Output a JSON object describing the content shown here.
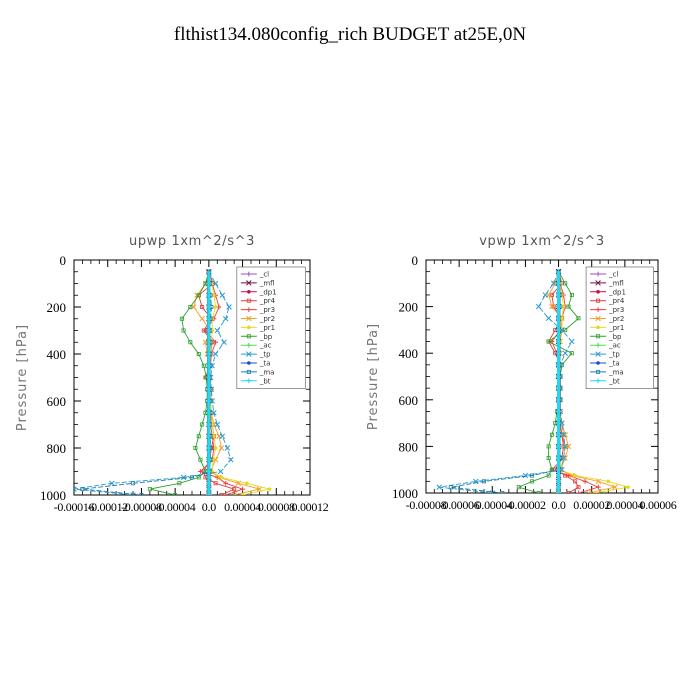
{
  "title": "flthist134.080config_rich  BUDGET at25E,0N",
  "chart_data": [
    {
      "type": "line",
      "title": "upwp   1xm^2/s^3",
      "ylabel": "Pressure [hPa]",
      "xlabel": "",
      "xlim": [
        -0.00016,
        0.00012
      ],
      "ylim": [
        1000,
        0
      ],
      "y_ticks": [
        0,
        200,
        400,
        600,
        800,
        1000
      ],
      "y_tick_labels": [
        "0",
        "200",
        "400",
        "600",
        "800",
        "1000"
      ],
      "x_ticks": [
        -0.00016,
        -0.00012,
        -8e-05,
        -4e-05,
        0.0,
        4e-05,
        8e-05,
        0.00012
      ],
      "x_tick_labels": [
        "-0.00016",
        "-0.00012",
        "-0.00008",
        "-0.00004",
        "0.0",
        "0.00004",
        "0.00008",
        "0.00012"
      ],
      "legend_position": "top-right",
      "pressure_levels": [
        50,
        100,
        150,
        200,
        250,
        300,
        350,
        400,
        450,
        500,
        550,
        600,
        650,
        700,
        750,
        800,
        850,
        900,
        925,
        950,
        975,
        1000
      ],
      "series": [
        {
          "name": "_cl",
          "color": "#a24cc2",
          "values": [
            0,
            0,
            0,
            0,
            0,
            0,
            0,
            0,
            0,
            0,
            0,
            0,
            0,
            0,
            0,
            0,
            0,
            0,
            0,
            0,
            0,
            0
          ]
        },
        {
          "name": "_mfl",
          "color": "#7a0f44",
          "values": [
            0,
            0,
            0,
            0,
            0,
            0,
            0,
            0,
            0,
            0,
            0,
            0,
            0,
            0,
            0,
            0,
            0,
            0,
            0,
            0,
            0,
            0
          ]
        },
        {
          "name": "_dp1",
          "color": "#c0104a",
          "values": [
            0,
            0,
            0,
            0,
            0,
            0,
            0,
            0,
            0,
            0,
            0,
            0,
            0,
            0,
            0,
            0,
            0,
            0,
            0,
            0,
            0,
            0
          ]
        },
        {
          "name": "_pr4",
          "color": "#e03a3a",
          "values": [
            0,
            5e-06,
            -1.2e-05,
            -8e-06,
            3e-06,
            -6e-06,
            4e-06,
            2e-06,
            1e-06,
            -4e-06,
            2e-06,
            1e-06,
            2e-06,
            4e-06,
            6e-06,
            3e-06,
            1e-06,
            -6e-06,
            -4e-06,
            8e-06,
            3e-05,
            1.5e-05
          ]
        },
        {
          "name": "_pr3",
          "color": "#f04040",
          "values": [
            0,
            4e-06,
            8e-06,
            1.2e-05,
            6e-06,
            -4e-06,
            8e-06,
            3e-06,
            2e-06,
            1e-06,
            3e-06,
            2e-06,
            2e-06,
            2e-06,
            4e-06,
            6e-06,
            4e-06,
            -1e-05,
            1e-05,
            2e-05,
            4e-05,
            2e-05
          ]
        },
        {
          "name": "_pr2",
          "color": "#f2a030",
          "values": [
            0,
            -4e-06,
            -1.4e-05,
            -1.8e-05,
            -8e-06,
            2e-06,
            -4e-06,
            -2e-06,
            1e-06,
            1e-06,
            2e-06,
            2e-06,
            3e-06,
            6e-06,
            1.2e-05,
            1.5e-05,
            8e-06,
            2e-06,
            1.2e-05,
            3.5e-05,
            6e-05,
            3e-05
          ]
        },
        {
          "name": "_pr1",
          "color": "#e8d820",
          "values": [
            0,
            3e-06,
            6e-06,
            8e-06,
            4e-06,
            4e-06,
            3e-06,
            2e-06,
            1e-06,
            1e-06,
            2e-06,
            2e-06,
            3e-06,
            4e-06,
            6e-06,
            8e-06,
            5e-06,
            4e-06,
            1.5e-05,
            4.5e-05,
            7.2e-05,
            4e-05
          ]
        },
        {
          "name": "_bp",
          "color": "#2ca02c",
          "values": [
            0,
            -4e-06,
            -1.2e-05,
            -2.2e-05,
            -3.2e-05,
            -3e-05,
            -2.2e-05,
            -1.2e-05,
            -6e-06,
            -3e-06,
            -2e-06,
            -2e-06,
            -4e-06,
            -8e-06,
            -1.2e-05,
            -1.6e-05,
            -1e-05,
            -4e-06,
            -1.2e-05,
            -3.5e-05,
            -7e-05,
            -4e-05
          ]
        },
        {
          "name": "_ac",
          "color": "#50e050",
          "values": [
            0,
            0,
            0,
            0,
            0,
            0,
            0,
            0,
            0,
            0,
            0,
            0,
            0,
            0,
            0,
            0,
            0,
            0,
            0,
            0,
            0,
            0
          ]
        },
        {
          "name": "_tp",
          "color": "#2a9ad0",
          "values": [
            0,
            8e-06,
            1.6e-05,
            2.4e-05,
            2e-05,
            1e-05,
            1.8e-05,
            8e-06,
            4e-06,
            2e-06,
            3e-06,
            4e-06,
            6e-06,
            1e-05,
            1.6e-05,
            2.2e-05,
            2.6e-05,
            1.4e-05,
            -3e-05,
            -0.000115,
            -0.00016,
            -9e-05
          ]
        },
        {
          "name": "_ta",
          "color": "#1e4cc0",
          "values": [
            0,
            0,
            0,
            0,
            0,
            0,
            0,
            0,
            0,
            0,
            0,
            0,
            0,
            0,
            0,
            0,
            0,
            0,
            0,
            0,
            0,
            0
          ]
        },
        {
          "name": "_ma",
          "color": "#1a7fa8",
          "values": [
            0,
            1e-06,
            2e-06,
            3e-06,
            2e-06,
            1e-06,
            2e-06,
            1e-06,
            0,
            0,
            0,
            0,
            1e-06,
            1e-06,
            2e-06,
            2e-06,
            2e-06,
            1e-06,
            -2e-05,
            -9e-05,
            -0.00015,
            -8e-05
          ]
        },
        {
          "name": "_bt",
          "color": "#20d8f0",
          "values": [
            0,
            0,
            0,
            0,
            0,
            0,
            0,
            0,
            0,
            0,
            0,
            0,
            0,
            0,
            0,
            0,
            0,
            0,
            0,
            0,
            0,
            0
          ]
        }
      ]
    },
    {
      "type": "line",
      "title": "vpwp   1xm^2/s^3",
      "ylabel": "Pressure [hPa]",
      "xlabel": "",
      "xlim": [
        -8e-05,
        6e-05
      ],
      "ylim": [
        1000,
        0
      ],
      "y_ticks": [
        0,
        200,
        400,
        600,
        800,
        1000
      ],
      "y_tick_labels": [
        "0",
        "200",
        "400",
        "600",
        "800",
        "1000"
      ],
      "x_ticks": [
        -8e-05,
        -6e-05,
        -4e-05,
        -2e-05,
        0.0,
        2e-05,
        4e-05,
        6e-05
      ],
      "x_tick_labels": [
        "-0.00008",
        "-0.00006",
        "-0.00004",
        "-0.00002",
        "0.0",
        "0.00002",
        "0.00004",
        "0.00006"
      ],
      "legend_position": "top-right",
      "pressure_levels": [
        50,
        100,
        150,
        200,
        250,
        300,
        350,
        400,
        450,
        500,
        550,
        600,
        650,
        700,
        750,
        800,
        850,
        900,
        925,
        950,
        975,
        1000
      ],
      "series": [
        {
          "name": "_cl",
          "color": "#a24cc2",
          "values": [
            0,
            0,
            0,
            0,
            0,
            0,
            0,
            0,
            0,
            0,
            0,
            0,
            0,
            0,
            0,
            0,
            0,
            0,
            0,
            0,
            0,
            0
          ]
        },
        {
          "name": "_mfl",
          "color": "#7a0f44",
          "values": [
            0,
            0,
            0,
            0,
            0,
            0,
            0,
            0,
            0,
            0,
            0,
            0,
            0,
            0,
            0,
            0,
            0,
            0,
            0,
            0,
            0,
            0
          ]
        },
        {
          "name": "_dp1",
          "color": "#c0104a",
          "values": [
            0,
            0,
            0,
            0,
            0,
            0,
            0,
            0,
            0,
            0,
            0,
            0,
            0,
            0,
            0,
            0,
            0,
            0,
            0,
            0,
            0,
            0
          ]
        },
        {
          "name": "_pr4",
          "color": "#e03a3a",
          "values": [
            0,
            2e-06,
            -4e-06,
            -3e-06,
            2e-06,
            -2e-06,
            -6e-06,
            -2e-06,
            1e-06,
            1e-06,
            1e-06,
            1e-06,
            1e-06,
            1e-06,
            2e-06,
            3e-06,
            2e-06,
            -2e-06,
            4e-06,
            1e-05,
            1.2e-05,
            6e-06
          ]
        },
        {
          "name": "_pr3",
          "color": "#f04040",
          "values": [
            0,
            1e-06,
            3e-06,
            4e-06,
            2e-06,
            1e-06,
            -4e-06,
            -1e-06,
            0,
            1e-06,
            1e-06,
            1e-06,
            1e-06,
            1e-06,
            2e-06,
            4e-06,
            3e-06,
            -4e-06,
            6e-06,
            1.6e-05,
            2.4e-05,
            1.2e-05
          ]
        },
        {
          "name": "_pr2",
          "color": "#f2a030",
          "values": [
            0,
            -2e-06,
            -6e-06,
            -4e-06,
            2e-06,
            2e-06,
            1e-06,
            1e-06,
            0,
            0,
            0,
            0,
            1e-06,
            2e-06,
            4e-06,
            6e-06,
            4e-06,
            1e-06,
            8e-06,
            2.4e-05,
            3.4e-05,
            1.8e-05
          ]
        },
        {
          "name": "_pr1",
          "color": "#e8d820",
          "values": [
            0,
            1e-06,
            2e-06,
            3e-06,
            2e-06,
            1e-06,
            1e-06,
            0,
            0,
            0,
            0,
            0,
            1e-06,
            2e-06,
            3e-06,
            4e-06,
            3e-06,
            1e-06,
            1e-05,
            3e-05,
            4.2e-05,
            2.2e-05
          ]
        },
        {
          "name": "_bp",
          "color": "#2ca02c",
          "values": [
            0,
            4e-06,
            8e-06,
            6e-06,
            1.2e-05,
            4e-06,
            -6e-06,
            8e-06,
            2e-06,
            1e-06,
            1e-06,
            1e-06,
            -1e-06,
            -2e-06,
            -4e-06,
            -6e-06,
            -6e-06,
            -4e-06,
            -6e-06,
            -1.6e-05,
            -2.4e-05,
            -1.2e-05
          ]
        },
        {
          "name": "_ac",
          "color": "#50e050",
          "values": [
            0,
            0,
            0,
            0,
            0,
            0,
            0,
            0,
            0,
            0,
            0,
            0,
            0,
            0,
            0,
            0,
            0,
            0,
            0,
            0,
            0,
            0
          ]
        },
        {
          "name": "_tp",
          "color": "#2a9ad0",
          "values": [
            0,
            -3e-06,
            -8e-06,
            -1.2e-05,
            -6e-06,
            2e-06,
            8e-06,
            4e-06,
            1e-06,
            1e-06,
            1e-06,
            1e-06,
            1e-06,
            2e-06,
            3e-06,
            4e-06,
            3e-06,
            2e-06,
            -2e-05,
            -5e-05,
            -7.2e-05,
            -4e-05
          ]
        },
        {
          "name": "_ta",
          "color": "#1e4cc0",
          "values": [
            0,
            0,
            0,
            0,
            0,
            0,
            0,
            0,
            0,
            0,
            0,
            0,
            0,
            0,
            0,
            0,
            0,
            0,
            0,
            0,
            0,
            0
          ]
        },
        {
          "name": "_ma",
          "color": "#1a7fa8",
          "values": [
            0,
            0,
            1e-06,
            1e-06,
            0,
            0,
            0,
            0,
            0,
            0,
            0,
            0,
            0,
            0,
            0,
            0,
            1e-06,
            0,
            -1.6e-05,
            -4.5e-05,
            -6.5e-05,
            -3.4e-05
          ]
        },
        {
          "name": "_bt",
          "color": "#20d8f0",
          "values": [
            0,
            0,
            0,
            0,
            0,
            0,
            0,
            0,
            0,
            0,
            0,
            0,
            0,
            0,
            0,
            0,
            0,
            0,
            0,
            0,
            0,
            0
          ]
        }
      ]
    }
  ]
}
